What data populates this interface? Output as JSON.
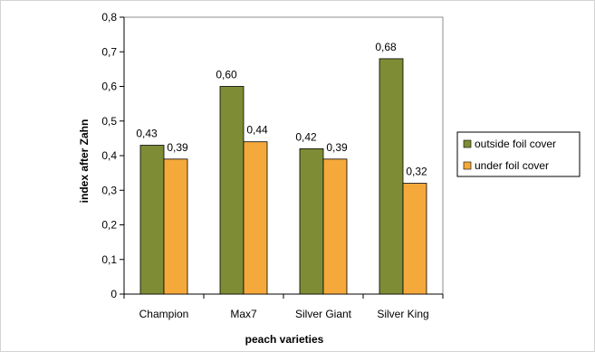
{
  "chart_data": {
    "type": "bar",
    "title": "",
    "xlabel": "peach varieties",
    "ylabel": "index after Zahn",
    "categories": [
      "Champion",
      "Max7",
      "Silver Giant",
      "Silver King"
    ],
    "series": [
      {
        "name": "outside foil cover",
        "color": "#7f8c36",
        "values": [
          0.43,
          0.6,
          0.42,
          0.68
        ],
        "labels": [
          "0,43",
          "0,60",
          "0,42",
          "0,68"
        ]
      },
      {
        "name": "under foil cover",
        "color": "#f5a93b",
        "values": [
          0.39,
          0.44,
          0.39,
          0.32
        ],
        "labels": [
          "0,39",
          "0,44",
          "0,39",
          "0,32"
        ]
      }
    ],
    "ylim": [
      0,
      0.8
    ],
    "yticks": [
      0,
      0.1,
      0.2,
      0.3,
      0.4,
      0.5,
      0.6,
      0.7,
      0.8
    ],
    "ytick_labels": [
      "0",
      "0,1",
      "0,2",
      "0,3",
      "0,4",
      "0,5",
      "0,6",
      "0,7",
      "0,8"
    ],
    "grid": false,
    "legend_position": "right"
  }
}
